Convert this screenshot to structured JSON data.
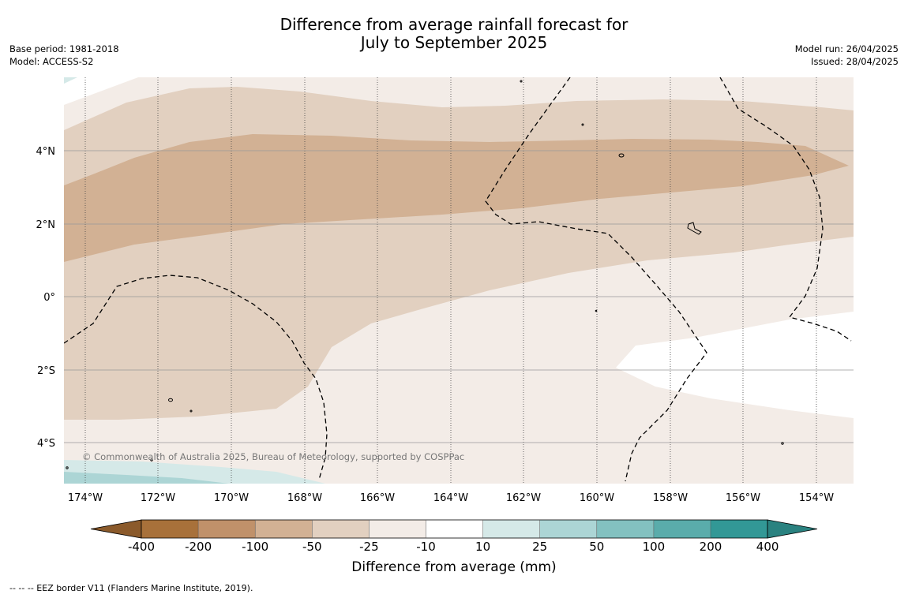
{
  "title": {
    "line1": "Difference from average rainfall forecast for",
    "line2": "July to September 2025"
  },
  "meta_left": {
    "base_period": "Base period: 1981-2018",
    "model": "Model: ACCESS-S2"
  },
  "meta_right": {
    "model_run": "Model run: 26/04/2025",
    "issued": "Issued: 28/04/2025"
  },
  "copyright": "© Commonwealth of Australia 2025, Bureau of Meteorology, supported by COSPPac",
  "map": {
    "lon_labels": [
      "174°W",
      "172°W",
      "170°W",
      "168°W",
      "166°W",
      "164°W",
      "162°W",
      "160°W",
      "158°W",
      "156°W",
      "154°W"
    ],
    "lat_labels": [
      "4°N",
      "2°N",
      "0°",
      "2°S",
      "4°S"
    ],
    "colors": {
      "lt_-200": "#a8713a",
      "-200_-100": "#c0916a",
      "-100_-50": "#d2b194",
      "-50_-25": "#e2d0c0",
      "-25_-10": "#f3ece7",
      "-10_10": "#ffffff",
      "10_25": "#d5e9e8",
      "25_50": "#acd5d5",
      "50_100": "#83c1c0",
      "100_200": "#5aacab",
      "200_400": "#329896",
      "gt_400": "#2a8280"
    }
  },
  "colorbar": {
    "tick_labels": [
      "-400",
      "-200",
      "-100",
      "-50",
      "-25",
      "-10",
      "10",
      "25",
      "50",
      "100",
      "200",
      "400"
    ],
    "colors": [
      "#a8713a",
      "#c0916a",
      "#d2b194",
      "#e2d0c0",
      "#f3ece7",
      "#ffffff",
      "#d5e9e8",
      "#acd5d5",
      "#83c1c0",
      "#5aacab",
      "#329896"
    ],
    "low_extend_color": "#8b5a2b",
    "high_extend_color": "#2a8280",
    "title": "Difference from average (mm)"
  },
  "footnote": "--  --  -- EEZ border V11 (Flanders Marine Institute, 2019)."
}
